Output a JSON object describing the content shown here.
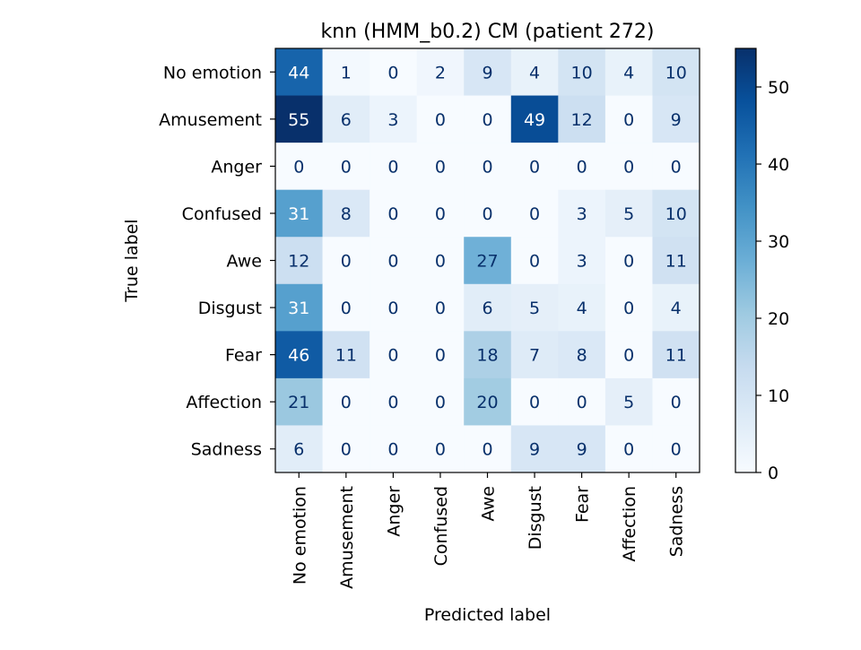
{
  "chart_data": {
    "type": "heatmap",
    "title": "knn (HMM_b0.2) CM (patient 272)",
    "xlabel": "Predicted label",
    "ylabel": "True label",
    "x_categories": [
      "No emotion",
      "Amusement",
      "Anger",
      "Confused",
      "Awe",
      "Disgust",
      "Fear",
      "Affection",
      "Sadness"
    ],
    "y_categories": [
      "No emotion",
      "Amusement",
      "Anger",
      "Confused",
      "Awe",
      "Disgust",
      "Fear",
      "Affection",
      "Sadness"
    ],
    "values": [
      [
        44,
        1,
        0,
        2,
        9,
        4,
        10,
        4,
        10
      ],
      [
        55,
        6,
        3,
        0,
        0,
        49,
        12,
        0,
        9
      ],
      [
        0,
        0,
        0,
        0,
        0,
        0,
        0,
        0,
        0
      ],
      [
        31,
        8,
        0,
        0,
        0,
        0,
        3,
        5,
        10
      ],
      [
        12,
        0,
        0,
        0,
        27,
        0,
        3,
        0,
        11
      ],
      [
        31,
        0,
        0,
        0,
        6,
        5,
        4,
        0,
        4
      ],
      [
        46,
        11,
        0,
        0,
        18,
        7,
        8,
        0,
        11
      ],
      [
        21,
        0,
        0,
        0,
        20,
        0,
        0,
        5,
        0
      ],
      [
        6,
        0,
        0,
        0,
        0,
        9,
        9,
        0,
        0
      ]
    ],
    "colormap": "Blues",
    "color_range": [
      0,
      55
    ],
    "colorbar_ticks": [
      0,
      10,
      20,
      30,
      40,
      50
    ],
    "colorbar_ticklabels": [
      "0",
      "10",
      "20",
      "30",
      "40",
      "50"
    ],
    "colors": {
      "low": "#f7fbff",
      "high": "#08306b",
      "text_dark": "#08306b",
      "text_light": "#ffffff"
    }
  }
}
